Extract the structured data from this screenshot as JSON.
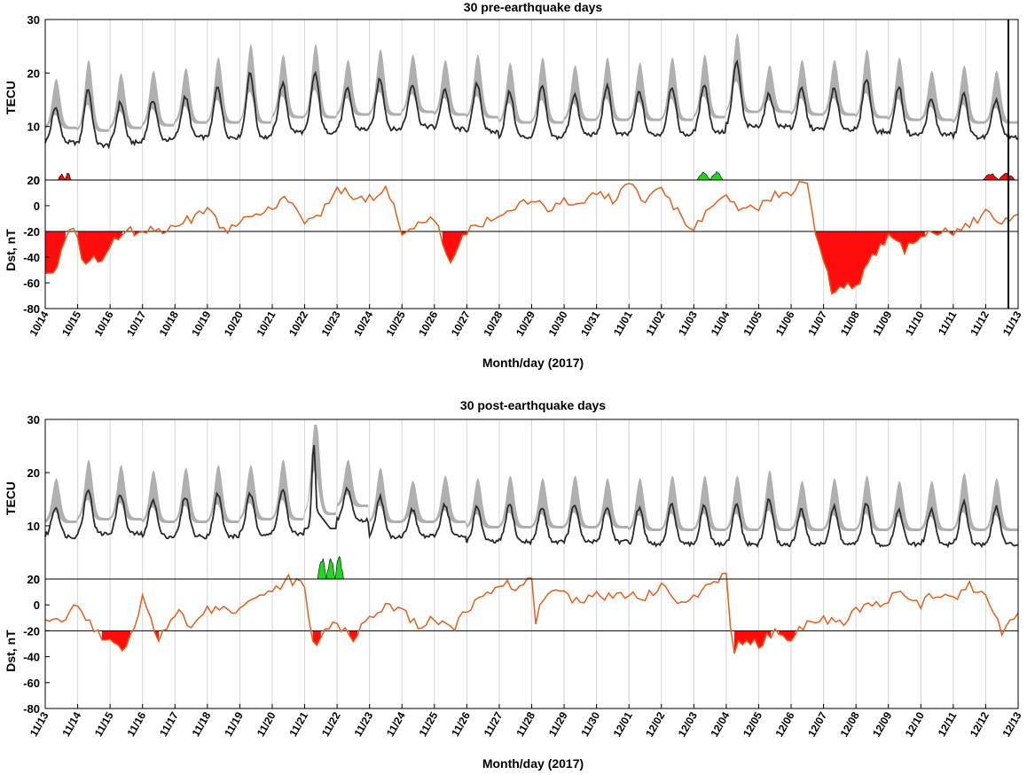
{
  "chart_data": [
    {
      "type": "line",
      "title": "30 pre-earthquake days",
      "xlabel": "Month/day (2017)",
      "x_ticks": [
        "10/14",
        "10/15",
        "10/16",
        "10/17",
        "10/18",
        "10/19",
        "10/20",
        "10/21",
        "10/22",
        "10/23",
        "10/24",
        "10/25",
        "10/26",
        "10/27",
        "10/28",
        "10/29",
        "10/30",
        "10/31",
        "11/01",
        "11/02",
        "11/03",
        "11/04",
        "11/05",
        "11/06",
        "11/07",
        "11/08",
        "11/09",
        "11/10",
        "11/11",
        "11/12",
        "11/13"
      ],
      "tec": {
        "ylabel": "TECU",
        "ylim": [
          0,
          30
        ],
        "yticks": [
          0,
          10,
          20,
          30
        ],
        "daily_peaks": [
          13.5,
          17,
          14.5,
          15,
          15.5,
          17.5,
          20,
          18,
          20,
          17,
          19,
          18,
          17,
          18,
          16.5,
          17.5,
          16,
          17.5,
          16.5,
          17.5,
          18,
          22,
          16,
          17,
          17,
          19,
          17.5,
          15,
          16,
          15,
          13.5
        ],
        "daily_minima": [
          7,
          6.5,
          7,
          7.5,
          8,
          8,
          8,
          9,
          9,
          9.5,
          9.5,
          10,
          9.5,
          9,
          8,
          8,
          8.5,
          8.5,
          8.5,
          8.5,
          9,
          10,
          10,
          9.5,
          9.5,
          9,
          8.5,
          8.5,
          8,
          8,
          7.5
        ],
        "anomaly_positive_days": [
          20.1,
          20.9
        ],
        "anomaly_negative_days": [
          0.4,
          0.8,
          28.9,
          29.9
        ]
      },
      "dst": {
        "ylabel": "Dst, nT",
        "ylim": [
          -80,
          20
        ],
        "yticks": [
          20,
          0,
          -20,
          -40,
          -60,
          -80
        ],
        "threshold": -20,
        "series": [
          [
            0,
            -50
          ],
          [
            0.3,
            -55
          ],
          [
            0.6,
            -25
          ],
          [
            0.9,
            -20
          ],
          [
            1.2,
            -45
          ],
          [
            1.5,
            -40
          ],
          [
            1.8,
            -45
          ],
          [
            2.1,
            -25
          ],
          [
            2.5,
            -20
          ],
          [
            3,
            -20
          ],
          [
            3.5,
            -20
          ],
          [
            4,
            -15
          ],
          [
            4.5,
            -10
          ],
          [
            5,
            0
          ],
          [
            5.5,
            -20
          ],
          [
            6,
            -10
          ],
          [
            6.5,
            -5
          ],
          [
            7,
            0
          ],
          [
            7.5,
            5
          ],
          [
            8,
            -15
          ],
          [
            8.5,
            -5
          ],
          [
            9,
            15
          ],
          [
            9.5,
            5
          ],
          [
            10,
            5
          ],
          [
            10.5,
            15
          ],
          [
            11,
            -20
          ],
          [
            11.5,
            -15
          ],
          [
            12,
            -10
          ],
          [
            12.5,
            -45
          ],
          [
            13,
            -20
          ],
          [
            13.5,
            -15
          ],
          [
            14,
            -5
          ],
          [
            14.5,
            0
          ],
          [
            15,
            5
          ],
          [
            15.5,
            -5
          ],
          [
            16,
            5
          ],
          [
            16.5,
            0
          ],
          [
            17,
            10
          ],
          [
            17.5,
            5
          ],
          [
            18,
            15
          ],
          [
            18.5,
            5
          ],
          [
            19,
            15
          ],
          [
            19.5,
            -5
          ],
          [
            20,
            -20
          ],
          [
            20.5,
            0
          ],
          [
            21,
            5
          ],
          [
            21.5,
            -5
          ],
          [
            22,
            0
          ],
          [
            22.5,
            10
          ],
          [
            23,
            10
          ],
          [
            23.5,
            20
          ],
          [
            23.7,
            -20
          ],
          [
            24,
            -40
          ],
          [
            24.3,
            -70
          ],
          [
            24.7,
            -60
          ],
          [
            25,
            -65
          ],
          [
            25.5,
            -40
          ],
          [
            26,
            -25
          ],
          [
            26.5,
            -35
          ],
          [
            27,
            -25
          ],
          [
            27.5,
            -20
          ],
          [
            28,
            -20
          ],
          [
            28.5,
            -15
          ],
          [
            29,
            -5
          ],
          [
            29.5,
            -15
          ],
          [
            30,
            -5
          ]
        ]
      },
      "marker_day": 29.7
    },
    {
      "type": "line",
      "title": "30 post-earthquake days",
      "xlabel": "Month/day (2017)",
      "x_ticks": [
        "11/13",
        "11/14",
        "11/15",
        "11/16",
        "11/17",
        "11/18",
        "11/19",
        "11/20",
        "11/21",
        "11/22",
        "11/23",
        "11/24",
        "11/25",
        "11/26",
        "11/27",
        "11/28",
        "11/29",
        "11/30",
        "12/01",
        "12/02",
        "12/03",
        "12/04",
        "12/05",
        "12/06",
        "12/07",
        "12/08",
        "12/09",
        "12/10",
        "12/11",
        "12/12",
        "12/13"
      ],
      "tec": {
        "ylabel": "TECU",
        "ylim": [
          0,
          30
        ],
        "yticks": [
          0,
          10,
          20,
          30
        ],
        "daily_peaks": [
          13.5,
          17,
          16,
          15,
          15.5,
          16,
          16,
          17,
          25.5,
          17,
          15.5,
          13,
          14,
          13.5,
          14,
          13.5,
          14,
          13.5,
          13.5,
          14,
          14,
          14,
          15,
          13,
          13.5,
          14,
          13,
          13,
          14.5,
          13.5,
          9
        ],
        "daily_minima": [
          8,
          8.5,
          8.5,
          8,
          8,
          8,
          8.5,
          8.5,
          9.5,
          11,
          8,
          8,
          8,
          7,
          7,
          7,
          7,
          7,
          6.5,
          6.5,
          6.5,
          6.5,
          6.5,
          6.5,
          6.5,
          6.5,
          6.5,
          6.5,
          6.5,
          6.5,
          6.5
        ],
        "anomaly_positive_days": [
          8.4,
          9.2
        ]
      },
      "dst": {
        "ylabel": "Dst, nT",
        "ylim": [
          -80,
          20
        ],
        "yticks": [
          20,
          0,
          -20,
          -40,
          -60,
          -80
        ],
        "threshold": -20,
        "series": [
          [
            0,
            -10
          ],
          [
            0.5,
            -15
          ],
          [
            1,
            0
          ],
          [
            1.5,
            -20
          ],
          [
            2,
            -30
          ],
          [
            2.5,
            -35
          ],
          [
            3,
            5
          ],
          [
            3.5,
            -30
          ],
          [
            4,
            -5
          ],
          [
            4.5,
            -15
          ],
          [
            5,
            -5
          ],
          [
            5.5,
            0
          ],
          [
            6,
            -5
          ],
          [
            6.5,
            5
          ],
          [
            7,
            10
          ],
          [
            7.5,
            20
          ],
          [
            8,
            15
          ],
          [
            8.3,
            -40
          ],
          [
            8.6,
            -20
          ],
          [
            9,
            -15
          ],
          [
            9.5,
            -25
          ],
          [
            10,
            -10
          ],
          [
            10.5,
            0
          ],
          [
            11,
            -5
          ],
          [
            11.5,
            -15
          ],
          [
            12,
            -10
          ],
          [
            12.5,
            -20
          ],
          [
            13,
            -5
          ],
          [
            13.5,
            5
          ],
          [
            14,
            15
          ],
          [
            14.5,
            15
          ],
          [
            15,
            20
          ],
          [
            15.1,
            -20
          ],
          [
            15.3,
            5
          ],
          [
            16,
            10
          ],
          [
            16.5,
            0
          ],
          [
            17,
            10
          ],
          [
            17.5,
            5
          ],
          [
            18,
            10
          ],
          [
            18.5,
            5
          ],
          [
            19,
            15
          ],
          [
            19.5,
            0
          ],
          [
            20,
            5
          ],
          [
            20.5,
            15
          ],
          [
            21,
            22
          ],
          [
            21.2,
            -35
          ],
          [
            21.6,
            -25
          ],
          [
            22,
            -30
          ],
          [
            22.5,
            -20
          ],
          [
            23,
            -25
          ],
          [
            23.5,
            -15
          ],
          [
            24,
            -10
          ],
          [
            24.5,
            -15
          ],
          [
            25,
            -5
          ],
          [
            25.5,
            0
          ],
          [
            26,
            5
          ],
          [
            26.5,
            10
          ],
          [
            27,
            0
          ],
          [
            27.5,
            10
          ],
          [
            28,
            5
          ],
          [
            28.5,
            15
          ],
          [
            29,
            5
          ],
          [
            29.5,
            -20
          ],
          [
            30,
            -5
          ]
        ]
      }
    }
  ]
}
